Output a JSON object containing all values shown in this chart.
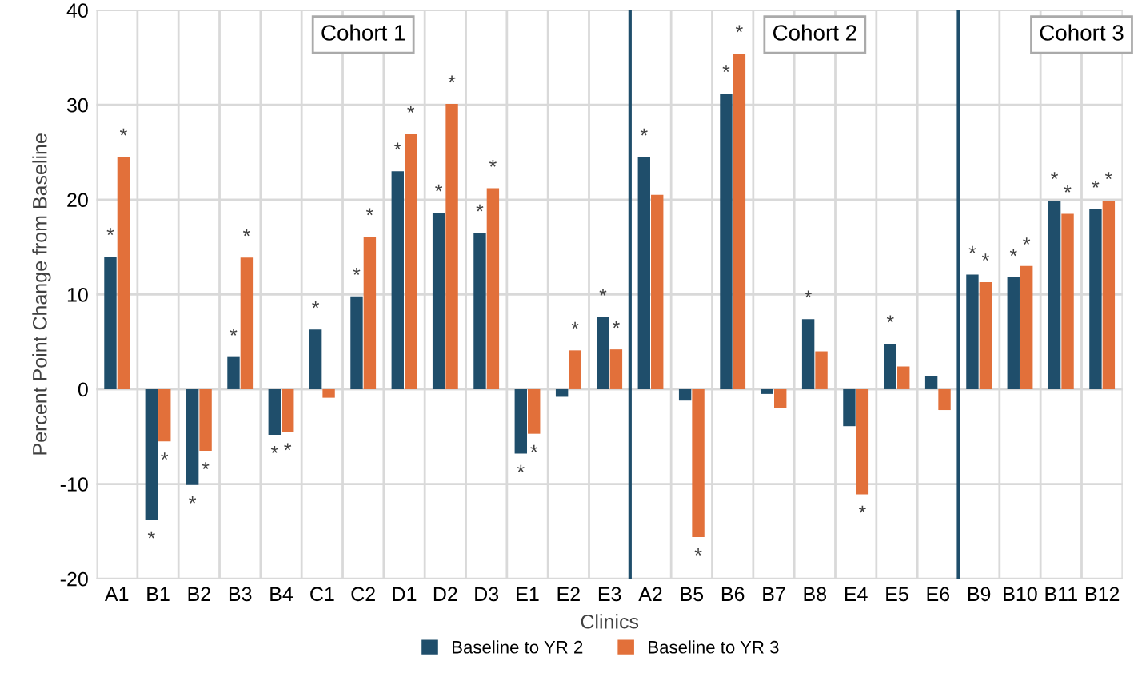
{
  "chart_data": {
    "type": "bar",
    "xlabel": "Clinics",
    "ylabel": "Percent Point Change from Baseline",
    "categories": [
      "A1",
      "B1",
      "B2",
      "B3",
      "B4",
      "C1",
      "C2",
      "D1",
      "D2",
      "D3",
      "E1",
      "E2",
      "E3",
      "A2",
      "B5",
      "B6",
      "B7",
      "B8",
      "E4",
      "E5",
      "E6",
      "B9",
      "B10",
      "B11",
      "B12"
    ],
    "series": [
      {
        "name": "Baseline to YR 2",
        "color": "#1f4e6b",
        "values": [
          14,
          -13.8,
          -10.1,
          3.4,
          -4.8,
          6.3,
          9.8,
          23,
          18.6,
          16.5,
          -6.8,
          -0.8,
          7.6,
          24.5,
          -1.2,
          31.2,
          -0.5,
          7.4,
          -3.9,
          4.8,
          1.4,
          12.1,
          11.8,
          19.9,
          19
        ],
        "value_labels": [
          "*",
          "*",
          "*",
          "*",
          "*",
          "*",
          "*",
          "*",
          "*",
          "*",
          "*",
          null,
          "*",
          "*",
          null,
          "*",
          null,
          "*",
          null,
          "*",
          null,
          "*",
          "*",
          "*",
          "*"
        ]
      },
      {
        "name": "Baseline to YR 3",
        "color": "#e2703a",
        "values": [
          24.5,
          -5.5,
          -6.5,
          13.9,
          -4.5,
          -0.9,
          16.1,
          26.9,
          30.1,
          21.2,
          -4.7,
          4.1,
          4.2,
          20.5,
          -15.6,
          35.4,
          -2,
          4,
          -11.1,
          2.4,
          -2.2,
          11.3,
          13,
          18.5,
          19.9
        ],
        "value_labels": [
          "*",
          "*",
          "*",
          "*",
          "*",
          null,
          "*",
          "*",
          "*",
          "*",
          "*",
          "*",
          "*",
          null,
          "*",
          "*",
          null,
          null,
          "*",
          null,
          null,
          "*",
          "*",
          "*",
          "*"
        ]
      }
    ],
    "ylim": [
      -20,
      40
    ],
    "yticks": [
      -20,
      -10,
      0,
      10,
      20,
      30,
      40
    ],
    "grid": true,
    "legend": "bottom",
    "annotations": [
      "Cohort 1",
      "Cohort 2",
      "Cohort 3"
    ]
  }
}
